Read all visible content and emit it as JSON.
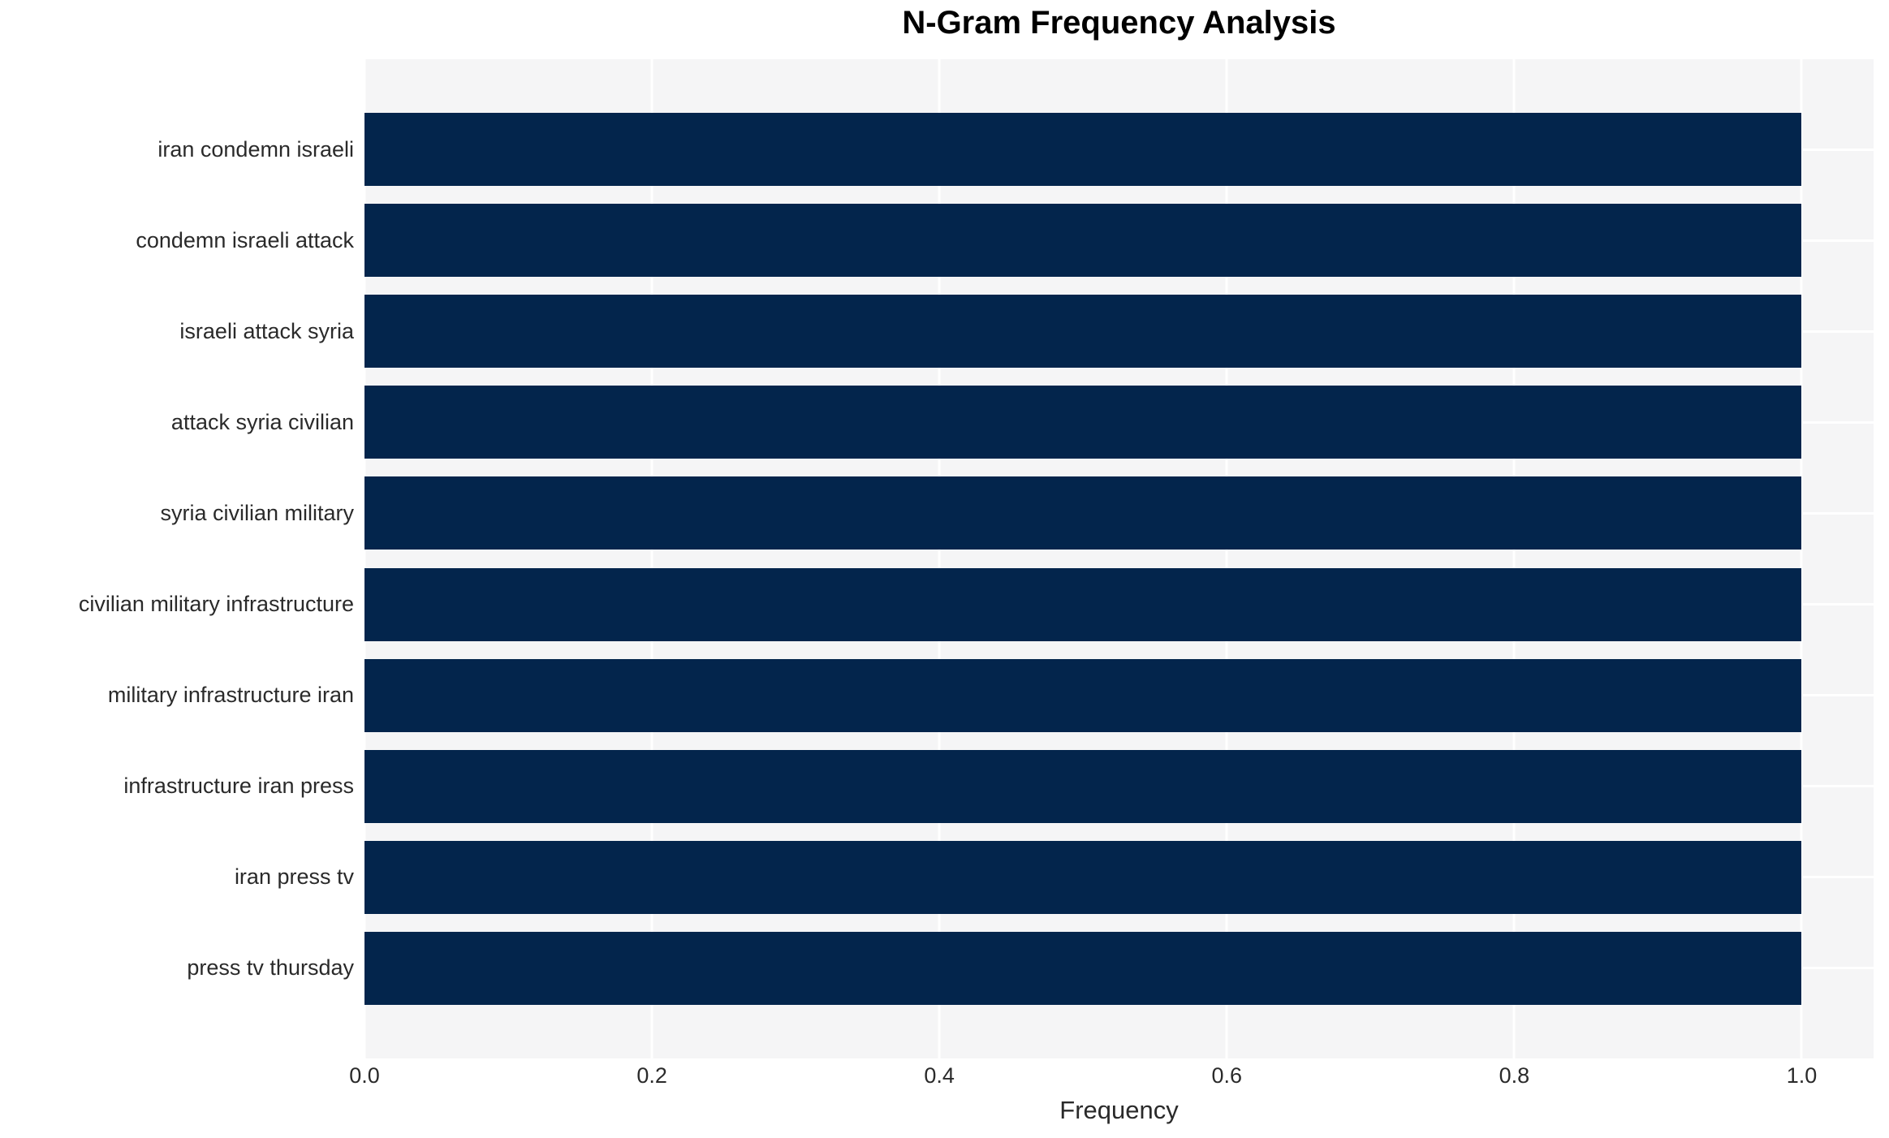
{
  "chart_data": {
    "type": "bar",
    "orientation": "horizontal",
    "title": "N-Gram Frequency Analysis",
    "xlabel": "Frequency",
    "ylabel": "",
    "categories": [
      "iran condemn israeli",
      "condemn israeli attack",
      "israeli attack syria",
      "attack syria civilian",
      "syria civilian military",
      "civilian military infrastructure",
      "military infrastructure iran",
      "infrastructure iran press",
      "iran press tv",
      "press tv thursday"
    ],
    "values": [
      1.0,
      1.0,
      1.0,
      1.0,
      1.0,
      1.0,
      1.0,
      1.0,
      1.0,
      1.0
    ],
    "xlim": [
      0,
      1.05
    ],
    "x_ticks": {
      "values": [
        0.0,
        0.2,
        0.4,
        0.6,
        0.8,
        1.0
      ],
      "labels": [
        "0.0",
        "0.2",
        "0.4",
        "0.6",
        "0.8",
        "1.0"
      ]
    },
    "grid": true,
    "legend": false,
    "colors": {
      "bar": "#03254c",
      "plot_background": "#f5f5f6",
      "gridline": "#ffffff",
      "tick_text": "#2a2a2a",
      "title_text": "#000000"
    }
  }
}
